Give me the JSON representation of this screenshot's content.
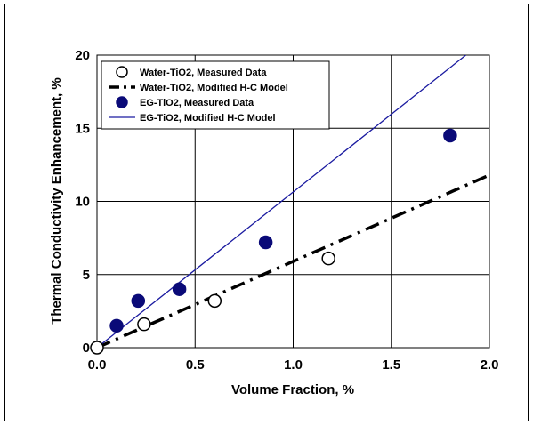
{
  "chart_data": {
    "type": "scatter",
    "title": "",
    "xlabel": "Volume Fraction, %",
    "ylabel": "Thermal Conductivity Enhancement, %",
    "xlim": [
      0.0,
      2.0
    ],
    "ylim": [
      0,
      20
    ],
    "x_ticks": [
      "0.0",
      "0.5",
      "1.0",
      "1.5",
      "2.0"
    ],
    "y_ticks": [
      "0",
      "5",
      "10",
      "15",
      "20"
    ],
    "grid": true,
    "legend_position": "top-left",
    "series": [
      {
        "name": "Water-TiO2, Measured Data",
        "kind": "scatter",
        "marker": "open-circle",
        "color": "#000000",
        "x": [
          0.0,
          0.24,
          0.6,
          1.18
        ],
        "y": [
          0.0,
          1.6,
          3.2,
          6.1
        ]
      },
      {
        "name": "Water-TiO2, Modified H-C Model",
        "kind": "line",
        "style": "dash-dot",
        "color": "#000000",
        "x": [
          0.0,
          2.0
        ],
        "y": [
          0.0,
          11.8
        ]
      },
      {
        "name": "EG-TiO2, Measured Data",
        "kind": "scatter",
        "marker": "filled-circle",
        "color": "#0a0a78",
        "x": [
          0.1,
          0.21,
          0.42,
          0.86,
          1.8
        ],
        "y": [
          1.5,
          3.2,
          4.0,
          7.2,
          14.5
        ]
      },
      {
        "name": "EG-TiO2, Modified H-C Model",
        "kind": "line",
        "style": "solid",
        "color": "#1a1aa0",
        "x": [
          0.0,
          1.88
        ],
        "y": [
          0.0,
          20.0
        ]
      }
    ]
  }
}
